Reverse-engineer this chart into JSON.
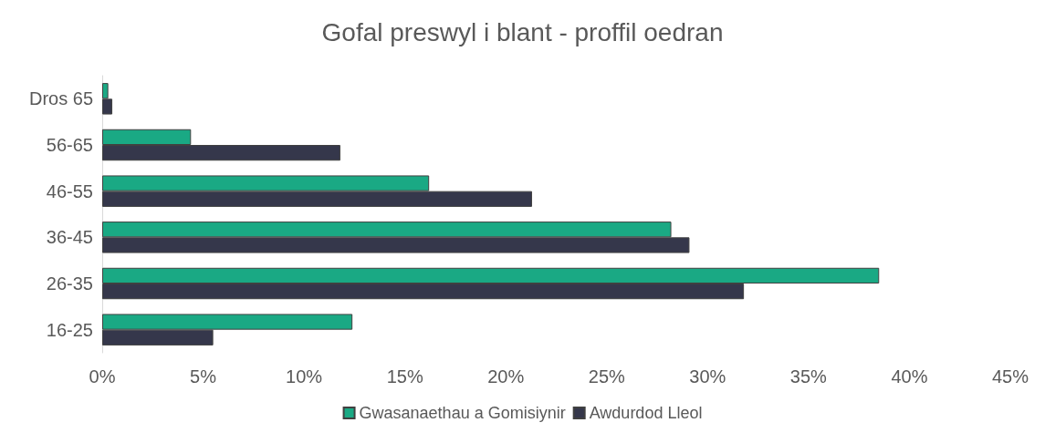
{
  "chart_data": {
    "type": "bar",
    "orientation": "horizontal",
    "title": "Gofal preswyl i blant - proffil oedran",
    "categories": [
      "Dros 65",
      "56-65",
      "46-55",
      "36-45",
      "26-35",
      "16-25"
    ],
    "series": [
      {
        "name": "Gwasanaethau a Gomisiynir",
        "color": "#1aa984",
        "values": [
          0.3,
          4.4,
          16.2,
          28.2,
          38.5,
          12.4
        ]
      },
      {
        "name": "Awdurdod Lleol",
        "color": "#35374b",
        "values": [
          0.5,
          11.8,
          21.3,
          29.1,
          31.8,
          5.5
        ]
      }
    ],
    "xlim": [
      0,
      45
    ],
    "xticks": [
      {
        "value": 0,
        "label": "0%"
      },
      {
        "value": 5,
        "label": "5%"
      },
      {
        "value": 10,
        "label": "10%"
      },
      {
        "value": 15,
        "label": "15%"
      },
      {
        "value": 20,
        "label": "20%"
      },
      {
        "value": 25,
        "label": "25%"
      },
      {
        "value": 30,
        "label": "30%"
      },
      {
        "value": 35,
        "label": "35%"
      },
      {
        "value": 40,
        "label": "40%"
      },
      {
        "value": 45,
        "label": "45%"
      }
    ],
    "grid": false,
    "legend": "bottom"
  }
}
